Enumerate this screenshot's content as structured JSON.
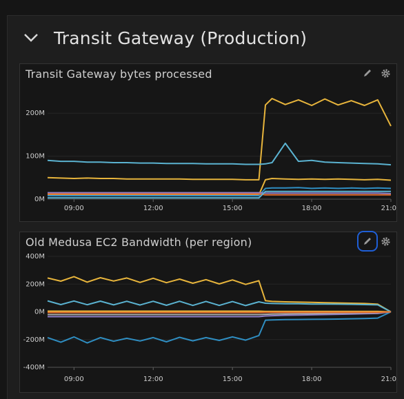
{
  "row": {
    "title": "Transit Gateway (Production)",
    "collapse_icon": "chevron-down-icon"
  },
  "panels": [
    {
      "title": "Transit Gateway bytes processed",
      "edit_icon": "pencil-icon",
      "settings_icon": "gear-icon"
    },
    {
      "title": "Old Medusa EC2 Bandwidth (per region)",
      "edit_icon": "pencil-icon",
      "settings_icon": "gear-icon"
    }
  ],
  "colors": {
    "yellow": "#e8b53c",
    "cyan": "#5bb3d1",
    "blue": "#2f8ec2",
    "purple": "#8f7fc8",
    "orange": "#e06b2b",
    "grey": "#aaaaaa",
    "focus": "#1f5fd6"
  },
  "chart_data": [
    {
      "type": "line",
      "title": "Transit Gateway bytes processed",
      "x": [
        "08:00",
        "08:30",
        "09:00",
        "09:30",
        "10:00",
        "10:30",
        "11:00",
        "11:30",
        "12:00",
        "12:30",
        "13:00",
        "13:30",
        "14:00",
        "14:30",
        "15:00",
        "15:30",
        "16:00",
        "16:15",
        "16:30",
        "17:00",
        "17:30",
        "18:00",
        "18:30",
        "19:00",
        "19:30",
        "20:00",
        "20:30",
        "21:00"
      ],
      "x_ticks": [
        "09:00",
        "12:00",
        "15:00",
        "18:00",
        "21:00"
      ],
      "y_ticks": [
        "0M",
        "100M",
        "200M"
      ],
      "ylim": [
        0,
        250
      ],
      "series": [
        {
          "color": "#e8b53c",
          "values": [
            50,
            49,
            48,
            49,
            48,
            48,
            47,
            47,
            47,
            47,
            47,
            46,
            46,
            46,
            46,
            45,
            45,
            225,
            228,
            226,
            225,
            224,
            227,
            225,
            223,
            224,
            225,
            170
          ]
        },
        {
          "color": "#5bb3d1",
          "values": [
            90,
            88,
            88,
            86,
            86,
            85,
            85,
            84,
            84,
            83,
            83,
            83,
            82,
            82,
            82,
            81,
            81,
            82,
            85,
            130,
            88,
            90,
            86,
            85,
            84,
            83,
            82,
            80
          ]
        },
        {
          "color": "#e8b53c",
          "values": [
            10,
            10,
            10,
            10,
            10,
            10,
            10,
            10,
            10,
            10,
            10,
            10,
            10,
            10,
            10,
            10,
            10,
            45,
            48,
            47,
            46,
            47,
            46,
            47,
            46,
            45,
            46,
            44
          ]
        },
        {
          "color": "#2f8ec2",
          "values": [
            8,
            8,
            8,
            8,
            8,
            8,
            8,
            8,
            8,
            8,
            8,
            8,
            8,
            8,
            8,
            8,
            8,
            25,
            26,
            26,
            27,
            25,
            26,
            25,
            26,
            25,
            26,
            25
          ]
        },
        {
          "color": "#8f7fc8",
          "values": [
            15,
            15,
            15,
            15,
            15,
            15,
            15,
            15,
            15,
            15,
            15,
            15,
            15,
            15,
            15,
            15,
            15,
            14,
            14,
            14,
            14,
            14,
            14,
            14,
            14,
            14,
            14,
            13
          ]
        },
        {
          "color": "#e06b2b",
          "values": [
            12,
            12,
            12,
            12,
            12,
            12,
            12,
            12,
            12,
            12,
            12,
            12,
            12,
            12,
            12,
            12,
            12,
            10,
            10,
            10,
            10,
            10,
            10,
            10,
            10,
            10,
            10,
            10
          ]
        },
        {
          "color": "#5bb3d1",
          "values": [
            3,
            3,
            3,
            3,
            3,
            3,
            3,
            3,
            3,
            3,
            3,
            3,
            3,
            3,
            3,
            3,
            3,
            18,
            18,
            18,
            18,
            18,
            18,
            18,
            18,
            18,
            18,
            18
          ]
        }
      ]
    },
    {
      "type": "line",
      "title": "Old Medusa EC2 Bandwidth (per region)",
      "x": [
        "08:00",
        "08:30",
        "09:00",
        "09:30",
        "10:00",
        "10:30",
        "11:00",
        "11:30",
        "12:00",
        "12:30",
        "13:00",
        "13:30",
        "14:00",
        "14:30",
        "15:00",
        "15:30",
        "16:00",
        "16:15",
        "16:30",
        "17:00",
        "17:30",
        "18:00",
        "18:30",
        "19:00",
        "19:30",
        "20:00",
        "20:30",
        "21:00"
      ],
      "x_ticks": [
        "09:00",
        "12:00",
        "15:00",
        "18:00",
        "21:00"
      ],
      "y_ticks": [
        "400M",
        "200M",
        "0M",
        "-200M",
        "-400M"
      ],
      "ylim": [
        -400,
        400
      ],
      "series": [
        {
          "color": "#e8b53c",
          "values": [
            230,
            235,
            240,
            228,
            232,
            236,
            230,
            226,
            228,
            224,
            222,
            220,
            218,
            215,
            216,
            212,
            210,
            80,
            75,
            72,
            70,
            68,
            66,
            64,
            62,
            60,
            55,
            0
          ]
        },
        {
          "color": "#5bb3d1",
          "values": [
            65,
            66,
            64,
            65,
            63,
            64,
            62,
            63,
            62,
            61,
            62,
            60,
            61,
            60,
            60,
            59,
            58,
            62,
            60,
            58,
            58,
            56,
            56,
            55,
            54,
            52,
            50,
            0
          ]
        },
        {
          "color": "#2f8ec2",
          "values": [
            -200,
            -205,
            -195,
            -210,
            -200,
            -198,
            -205,
            -196,
            -200,
            -202,
            -198,
            -195,
            -200,
            -192,
            -195,
            -190,
            -185,
            -60,
            -58,
            -56,
            -55,
            -54,
            -53,
            -52,
            -50,
            -48,
            -45,
            0
          ]
        },
        {
          "color": "#8f7fc8",
          "values": [
            -35,
            -35,
            -35,
            -35,
            -35,
            -35,
            -35,
            -35,
            -35,
            -35,
            -35,
            -35,
            -35,
            -35,
            -35,
            -35,
            -35,
            -30,
            -28,
            -25,
            -24,
            -22,
            -20,
            -18,
            -16,
            -14,
            -12,
            0
          ]
        },
        {
          "color": "#aaaaaa",
          "values": [
            -20,
            -20,
            -20,
            -20,
            -20,
            -20,
            -20,
            -20,
            -20,
            -20,
            -20,
            -20,
            -20,
            -20,
            -20,
            -20,
            -20,
            -18,
            -16,
            -15,
            -14,
            -13,
            -12,
            -10,
            -9,
            -8,
            -6,
            0
          ]
        },
        {
          "color": "#e8b53c",
          "values": [
            5,
            5,
            5,
            5,
            5,
            5,
            5,
            5,
            5,
            5,
            5,
            5,
            5,
            5,
            5,
            5,
            5,
            3,
            3,
            3,
            3,
            3,
            3,
            3,
            3,
            3,
            3,
            0
          ]
        },
        {
          "color": "#e06b2b",
          "values": [
            -5,
            -5,
            -5,
            -5,
            -5,
            -5,
            -5,
            -5,
            -5,
            -5,
            -5,
            -5,
            -5,
            -5,
            -5,
            -5,
            -5,
            -4,
            -4,
            -4,
            -4,
            -4,
            -4,
            -4,
            -4,
            -4,
            -4,
            0
          ]
        }
      ]
    }
  ]
}
